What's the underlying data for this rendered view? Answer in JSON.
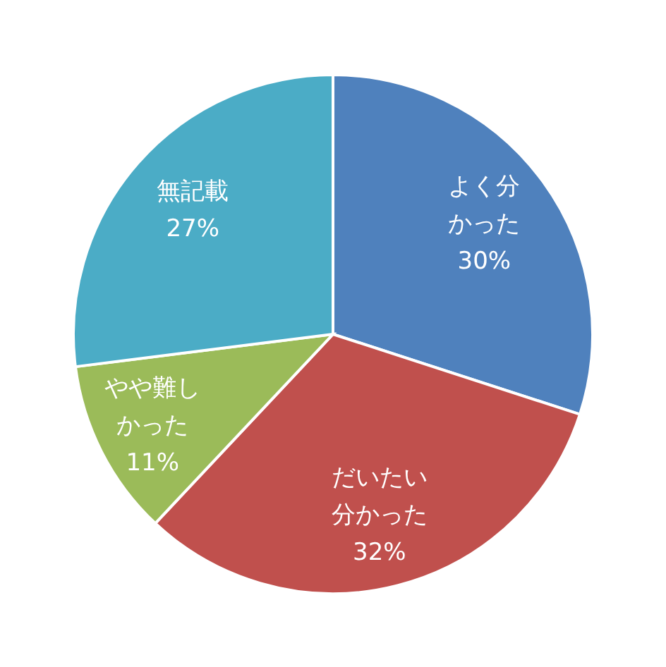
{
  "chart_data": {
    "type": "pie",
    "categories": [
      "よく分かった",
      "だいたい分かった",
      "やや難しかった",
      "無記載"
    ],
    "values": [
      30,
      32,
      11,
      27
    ],
    "value_labels": [
      "30%",
      "32%",
      "11%",
      "27%"
    ],
    "colors": [
      "#4f81bd",
      "#c0504d",
      "#9bbb59",
      "#4bacc6"
    ]
  }
}
